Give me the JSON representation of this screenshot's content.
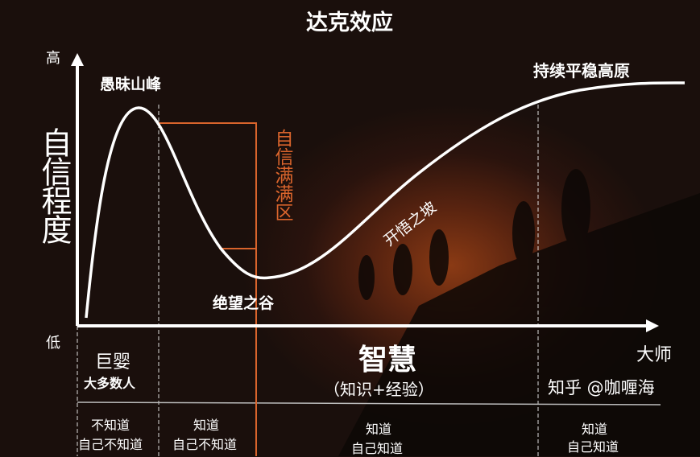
{
  "title": "达克效应",
  "y_axis": {
    "label": "自信程度",
    "high": "高",
    "low": "低"
  },
  "x_axis": {
    "label": "智慧",
    "sublabel": "（知识+经验）",
    "end": "大师"
  },
  "curve_labels": {
    "peak": "愚昧山峰",
    "valley": "绝望之谷",
    "slope": "开悟之坡",
    "plateau": "持续平稳高原",
    "zone": "自信满满区"
  },
  "stages": [
    {
      "name": "巨婴",
      "sub": "大多数人",
      "desc1": "不知道",
      "desc2": "自己不知道"
    },
    {
      "desc1": "知道",
      "desc2": "自己不知道"
    },
    {
      "desc1": "知道",
      "desc2": "自己知道"
    },
    {
      "desc1": "知道",
      "desc2": "自己知道"
    }
  ],
  "watermark": "知乎 @咖喱海",
  "colors": {
    "curve": "#ffffff",
    "zone": "#d9642c",
    "background": "#1a0f0c"
  }
}
